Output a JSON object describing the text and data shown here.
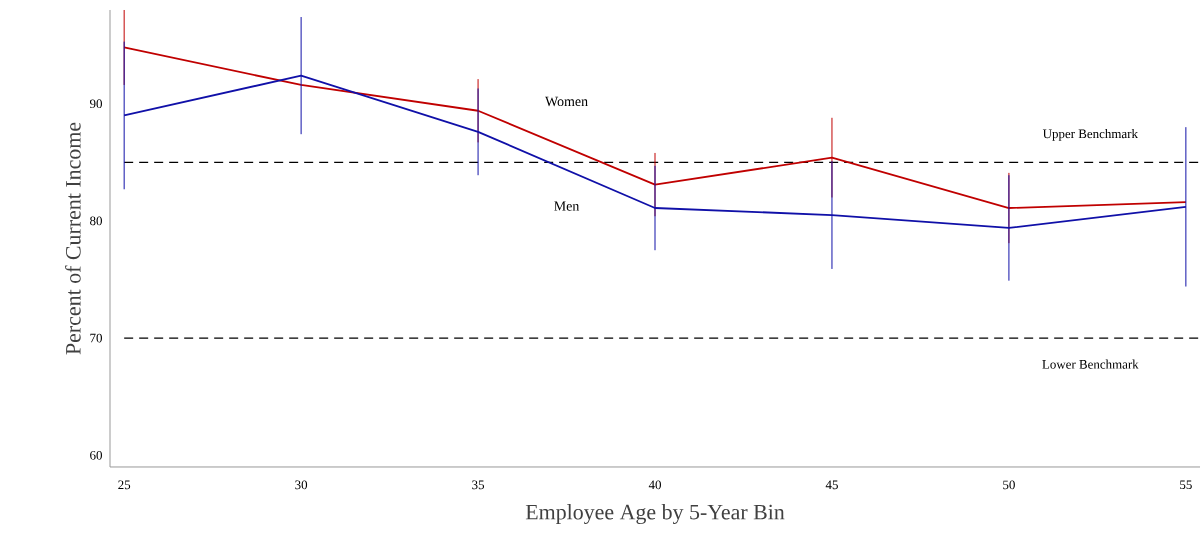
{
  "chart_data": {
    "type": "line",
    "xlabel": "Employee Age by 5-Year Bin",
    "ylabel": "Percent of Current Income",
    "x": [
      25,
      30,
      35,
      40,
      45,
      50,
      55
    ],
    "series": [
      {
        "name": "Women",
        "color": "#c00000",
        "values": [
          94.8,
          91.6,
          89.4,
          83.1,
          85.4,
          81.1,
          81.6
        ],
        "errors": [
          3.2,
          null,
          2.7,
          2.7,
          3.4,
          3.0,
          null
        ]
      },
      {
        "name": "Men",
        "color": "#1010a8",
        "values": [
          89.0,
          92.4,
          87.6,
          81.1,
          80.5,
          79.4,
          81.2
        ],
        "errors": [
          6.3,
          5.0,
          3.7,
          3.6,
          4.6,
          4.5,
          6.8
        ]
      }
    ],
    "xlim": [
      24.6,
      55.4
    ],
    "ylim": [
      59,
      98
    ],
    "xticks": [
      25,
      30,
      35,
      40,
      45,
      50,
      55
    ],
    "yticks": [
      60,
      70,
      80,
      90
    ],
    "ref_lines": [
      {
        "axis": "y",
        "value": 85,
        "label": "Upper Benchmark",
        "color": "#000000",
        "line_style": "dashed"
      },
      {
        "axis": "y",
        "value": 70,
        "label": "Lower Benchmark",
        "color": "#000000",
        "line_style": "dashed"
      }
    ],
    "grid": false,
    "legend": false,
    "marker": "none",
    "line_style": "solid"
  }
}
